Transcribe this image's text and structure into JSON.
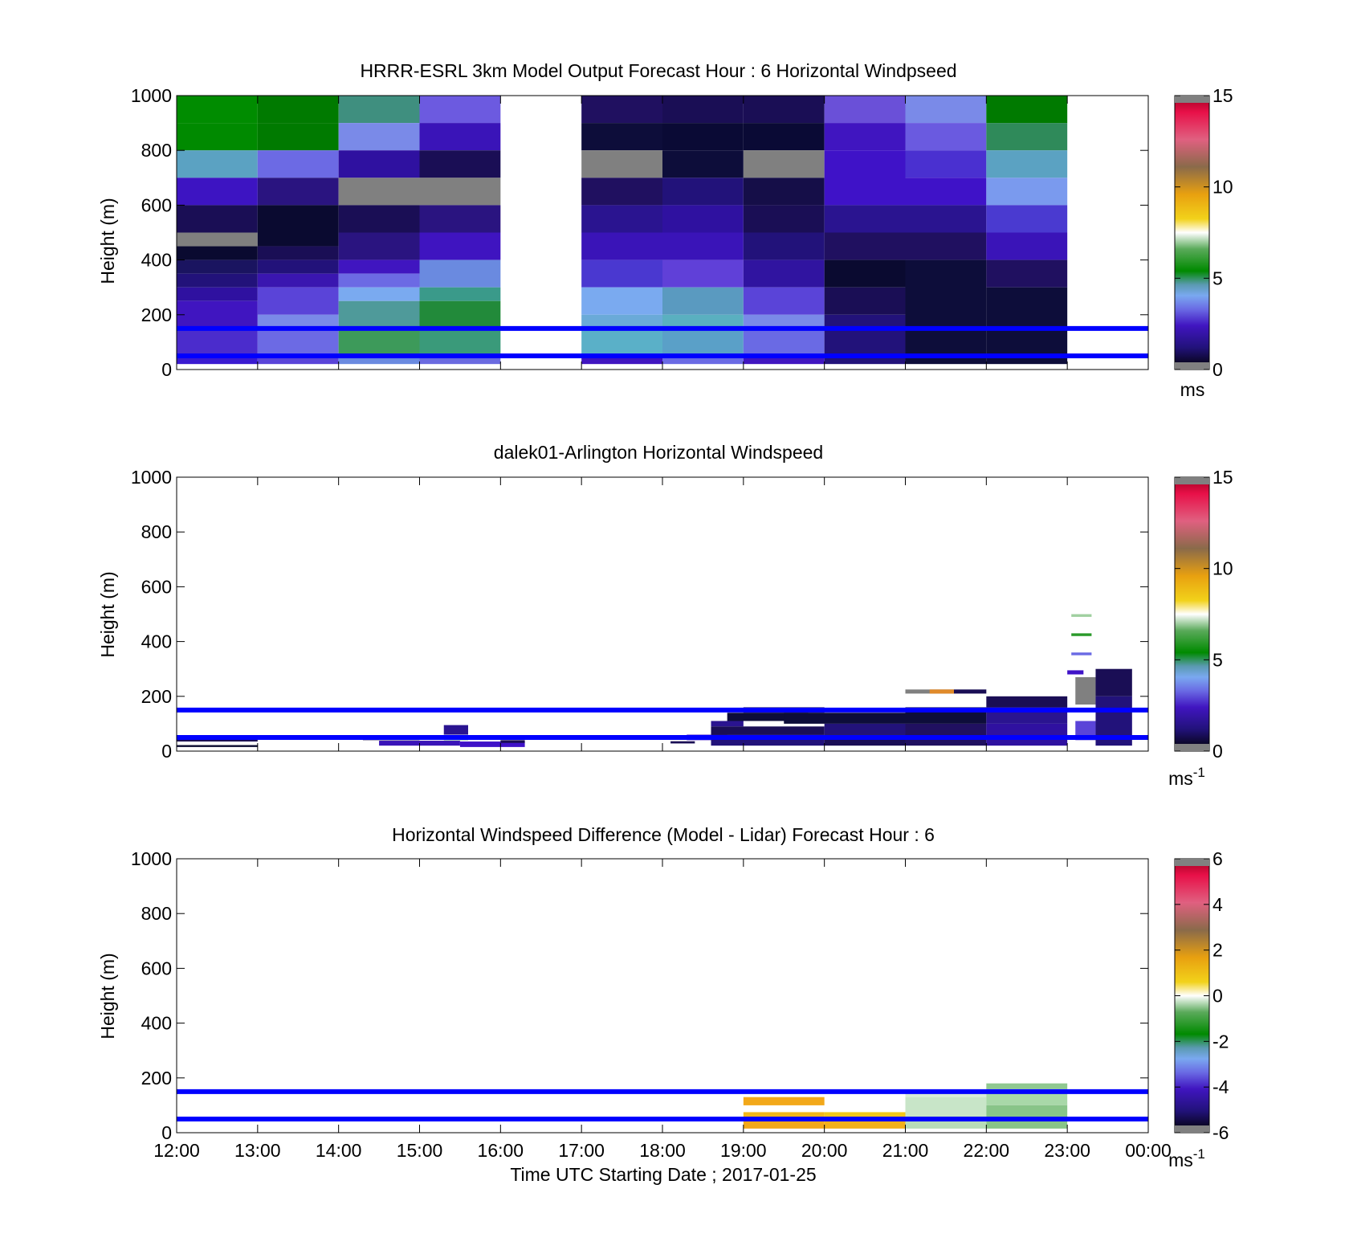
{
  "panels": [
    {
      "title": "HRRR-ESRL 3km Model Output   Forecast Hour : 6 Horizontal Windpseed",
      "ylabel": "Height (m)",
      "colorbar": {
        "unit": "ms",
        "unit_sup": "",
        "ticks": [
          "0",
          "5",
          "10",
          "15"
        ],
        "min": 0,
        "max": 15
      }
    },
    {
      "title": "dalek01-Arlington  Horizontal Windspeed",
      "ylabel": "Height (m)",
      "colorbar": {
        "unit": "ms",
        "unit_sup": "-1",
        "ticks": [
          "0",
          "5",
          "10",
          "15"
        ],
        "min": 0,
        "max": 15
      }
    },
    {
      "title": "Horizontal Windspeed Difference (Model - Lidar) Forecast Hour : 6",
      "ylabel": "Height (m)",
      "colorbar": {
        "unit": "ms",
        "unit_sup": "-1",
        "ticks": [
          "-6",
          "-4",
          "-2",
          "0",
          "2",
          "4",
          "6"
        ],
        "min": -6,
        "max": 6
      }
    }
  ],
  "xaxis": {
    "label": "Time UTC  Starting Date ; 2017-01-25",
    "ticks": [
      "12:00",
      "13:00",
      "14:00",
      "15:00",
      "16:00",
      "17:00",
      "18:00",
      "19:00",
      "20:00",
      "21:00",
      "22:00",
      "23:00",
      "00:00"
    ]
  },
  "yaxis": {
    "ticks": [
      "0",
      "200",
      "400",
      "600",
      "800",
      "1000"
    ],
    "range": [
      0,
      1000
    ]
  },
  "reference_lines": [
    50,
    150
  ],
  "colors": {
    "reference_line": "#0000ff",
    "nodata": "#808080"
  },
  "chart_data": [
    {
      "type": "heatmap",
      "title": "HRRR-ESRL 3km Model Output   Forecast Hour : 6 Horizontal Windpseed",
      "xlabel": "",
      "ylabel": "Height (m)",
      "xlim": [
        12,
        24
      ],
      "ylim": [
        0,
        1000
      ],
      "colorbar_range": [
        0,
        15
      ],
      "cells": [
        [
          12,
          13,
          900,
          1000,
          "#008c00"
        ],
        [
          12,
          13,
          800,
          900,
          "#008a00"
        ],
        [
          12,
          13,
          700,
          800,
          "#5ba2c2"
        ],
        [
          12,
          13,
          600,
          700,
          "#3d14c2"
        ],
        [
          12,
          13,
          500,
          600,
          "#1a0e55"
        ],
        [
          12,
          13,
          450,
          500,
          "#7f7f7f"
        ],
        [
          12,
          13,
          400,
          450,
          "#0a0a30"
        ],
        [
          12,
          13,
          350,
          400,
          "#1a1460"
        ],
        [
          12,
          13,
          300,
          350,
          "#22127a"
        ],
        [
          12,
          13,
          250,
          300,
          "#2f11a0"
        ],
        [
          12,
          13,
          150,
          250,
          "#4015c0"
        ],
        [
          12,
          13,
          50,
          150,
          "#4b2ccc"
        ],
        [
          12,
          13,
          20,
          50,
          "#3a1ad0"
        ],
        [
          13,
          14,
          900,
          1000,
          "#007a00"
        ],
        [
          13,
          14,
          800,
          900,
          "#007a00"
        ],
        [
          13,
          14,
          700,
          800,
          "#6c6ae4"
        ],
        [
          13,
          14,
          600,
          700,
          "#2a1480"
        ],
        [
          13,
          14,
          450,
          600,
          "#0a0a30"
        ],
        [
          13,
          14,
          400,
          450,
          "#1a0e55"
        ],
        [
          13,
          14,
          350,
          400,
          "#22127a"
        ],
        [
          13,
          14,
          300,
          350,
          "#3a16b0"
        ],
        [
          13,
          14,
          200,
          300,
          "#5a44d8"
        ],
        [
          13,
          14,
          150,
          200,
          "#7a8ae8"
        ],
        [
          13,
          14,
          50,
          150,
          "#6c6ae4"
        ],
        [
          13,
          14,
          20,
          50,
          "#5a44d8"
        ],
        [
          14,
          15,
          900,
          1000,
          "#3f8f7f"
        ],
        [
          14,
          15,
          800,
          900,
          "#7a8ae8"
        ],
        [
          14,
          15,
          700,
          800,
          "#2f11a0"
        ],
        [
          14,
          15,
          600,
          700,
          "#808080"
        ],
        [
          14,
          15,
          500,
          600,
          "#1a0e55"
        ],
        [
          14,
          15,
          400,
          500,
          "#2a1480"
        ],
        [
          14,
          15,
          350,
          400,
          "#4015c0"
        ],
        [
          14,
          15,
          300,
          350,
          "#6c6ae4"
        ],
        [
          14,
          15,
          250,
          300,
          "#7aaaf0"
        ],
        [
          14,
          15,
          150,
          250,
          "#4f9a9a"
        ],
        [
          14,
          15,
          50,
          150,
          "#3d9a5a"
        ],
        [
          14,
          15,
          20,
          50,
          "#6a8ae0"
        ],
        [
          15,
          16,
          900,
          1000,
          "#6c5ae0"
        ],
        [
          15,
          16,
          800,
          900,
          "#3a14b8"
        ],
        [
          15,
          16,
          700,
          800,
          "#1a0e55"
        ],
        [
          15,
          16,
          600,
          700,
          "#808080"
        ],
        [
          15,
          16,
          500,
          600,
          "#2a1480"
        ],
        [
          15,
          16,
          400,
          500,
          "#3f14c0"
        ],
        [
          15,
          16,
          300,
          400,
          "#6a8ae0"
        ],
        [
          15,
          16,
          250,
          300,
          "#3a9a8a"
        ],
        [
          15,
          16,
          150,
          250,
          "#228a3a"
        ],
        [
          15,
          16,
          50,
          150,
          "#3a9a7a"
        ],
        [
          15,
          16,
          20,
          50,
          "#6a6ae0"
        ],
        [
          17,
          18,
          900,
          1000,
          "#201060"
        ],
        [
          17,
          18,
          800,
          900,
          "#0d0d3a"
        ],
        [
          17,
          18,
          700,
          800,
          "#808080"
        ],
        [
          17,
          18,
          600,
          700,
          "#201060"
        ],
        [
          17,
          18,
          500,
          600,
          "#2a1490"
        ],
        [
          17,
          18,
          400,
          500,
          "#3a14b8"
        ],
        [
          17,
          18,
          300,
          400,
          "#4a38d0"
        ],
        [
          17,
          18,
          200,
          300,
          "#7aaaf0"
        ],
        [
          17,
          18,
          150,
          200,
          "#6aaad8"
        ],
        [
          17,
          18,
          50,
          150,
          "#5ab0c8"
        ],
        [
          17,
          18,
          20,
          50,
          "#4015c0"
        ],
        [
          18,
          19,
          900,
          1000,
          "#1a0e55"
        ],
        [
          18,
          19,
          800,
          900,
          "#0a0a35"
        ],
        [
          18,
          19,
          700,
          800,
          "#0d0d3a"
        ],
        [
          18,
          19,
          600,
          700,
          "#22127a"
        ],
        [
          18,
          19,
          500,
          600,
          "#2f11a0"
        ],
        [
          18,
          19,
          400,
          500,
          "#3a14b8"
        ],
        [
          18,
          19,
          300,
          400,
          "#6040d8"
        ],
        [
          18,
          19,
          200,
          300,
          "#5a9ac0"
        ],
        [
          18,
          19,
          150,
          200,
          "#5ab0c0"
        ],
        [
          18,
          19,
          50,
          150,
          "#5aa0c8"
        ],
        [
          18,
          19,
          20,
          50,
          "#6a6ae4"
        ],
        [
          19,
          20,
          900,
          1000,
          "#1a0e55"
        ],
        [
          19,
          20,
          800,
          900,
          "#0a0a35"
        ],
        [
          19,
          20,
          700,
          800,
          "#808080"
        ],
        [
          19,
          20,
          600,
          700,
          "#150e48"
        ],
        [
          19,
          20,
          500,
          600,
          "#1a0e55"
        ],
        [
          19,
          20,
          400,
          500,
          "#22127a"
        ],
        [
          19,
          20,
          300,
          400,
          "#3014a0"
        ],
        [
          19,
          20,
          200,
          300,
          "#5a44d8"
        ],
        [
          19,
          20,
          150,
          200,
          "#7a8ae8"
        ],
        [
          19,
          20,
          50,
          150,
          "#6a6ae4"
        ],
        [
          19,
          20,
          20,
          50,
          "#4015c0"
        ],
        [
          20,
          21,
          900,
          1000,
          "#6a50d8"
        ],
        [
          20,
          21,
          800,
          900,
          "#4015c0"
        ],
        [
          20,
          21,
          600,
          800,
          "#3f12c8"
        ],
        [
          20,
          21,
          500,
          600,
          "#2a1490"
        ],
        [
          20,
          21,
          400,
          500,
          "#201060"
        ],
        [
          20,
          21,
          300,
          400,
          "#0a0a30"
        ],
        [
          20,
          21,
          200,
          300,
          "#1a0e55"
        ],
        [
          20,
          21,
          20,
          200,
          "#22127a"
        ],
        [
          21,
          22,
          900,
          1000,
          "#7a8ae8"
        ],
        [
          21,
          22,
          800,
          900,
          "#6a5ae0"
        ],
        [
          21,
          22,
          700,
          800,
          "#4a30d0"
        ],
        [
          21,
          22,
          600,
          700,
          "#3f12c8"
        ],
        [
          21,
          22,
          500,
          600,
          "#2a1490"
        ],
        [
          21,
          22,
          400,
          500,
          "#201060"
        ],
        [
          21,
          22,
          20,
          400,
          "#0d0d3a"
        ],
        [
          22,
          23,
          900,
          1000,
          "#007a00"
        ],
        [
          22,
          23,
          800,
          900,
          "#2f8a5a"
        ],
        [
          22,
          23,
          700,
          800,
          "#5ba2c2"
        ],
        [
          22,
          23,
          600,
          700,
          "#7a9aee"
        ],
        [
          22,
          23,
          500,
          600,
          "#4a3ad0"
        ],
        [
          22,
          23,
          400,
          500,
          "#3a14b8"
        ],
        [
          22,
          23,
          300,
          400,
          "#201060"
        ],
        [
          22,
          23,
          20,
          300,
          "#0d0d3a"
        ]
      ]
    },
    {
      "type": "heatmap",
      "title": "dalek01-Arlington  Horizontal Windspeed",
      "xlabel": "",
      "ylabel": "Height (m)",
      "xlim": [
        12,
        24
      ],
      "ylim": [
        0,
        1000
      ],
      "colorbar_range": [
        0,
        15
      ],
      "cells": [
        [
          12,
          13,
          35,
          45,
          "#1a0e55"
        ],
        [
          12,
          13,
          15,
          22,
          "#0a0a30"
        ],
        [
          14.3,
          15,
          40,
          48,
          "#1a0e55"
        ],
        [
          14.5,
          15.5,
          20,
          38,
          "#3a14b8"
        ],
        [
          15.3,
          15.6,
          60,
          95,
          "#2a1490"
        ],
        [
          15.3,
          15.6,
          40,
          55,
          "#3a9a5a"
        ],
        [
          15.5,
          16.3,
          15,
          35,
          "#3f12c8"
        ],
        [
          16,
          16.3,
          30,
          40,
          "#1a0e55"
        ],
        [
          18.1,
          18.4,
          28,
          36,
          "#1a0e55"
        ],
        [
          18.3,
          18.8,
          40,
          60,
          "#3f12c8"
        ],
        [
          18.6,
          19,
          90,
          110,
          "#2a1490"
        ],
        [
          18.6,
          20,
          60,
          90,
          "#1a0e55"
        ],
        [
          18.6,
          20,
          20,
          60,
          "#22127a"
        ],
        [
          18.8,
          19.8,
          110,
          140,
          "#0d0d3a"
        ],
        [
          19,
          20,
          140,
          160,
          "#1a0e55"
        ],
        [
          19.5,
          21,
          100,
          140,
          "#0d0d3a"
        ],
        [
          20,
          21,
          60,
          100,
          "#22127a"
        ],
        [
          20,
          21,
          20,
          60,
          "#1a0e55"
        ],
        [
          21,
          21.6,
          210,
          225,
          "#808080"
        ],
        [
          21.3,
          21.6,
          210,
          225,
          "#e08a2a"
        ],
        [
          21.6,
          22,
          210,
          225,
          "#1a0e55"
        ],
        [
          21,
          22,
          100,
          160,
          "#0d0d3a"
        ],
        [
          21,
          22,
          20,
          100,
          "#201060"
        ],
        [
          22,
          23,
          160,
          200,
          "#1a0e55"
        ],
        [
          22,
          23,
          100,
          160,
          "#2a1490"
        ],
        [
          22,
          23,
          20,
          100,
          "#2f11a0"
        ],
        [
          23,
          23.2,
          280,
          295,
          "#3f12c8"
        ],
        [
          23.1,
          23.35,
          170,
          270,
          "#808080"
        ],
        [
          23.1,
          23.35,
          40,
          110,
          "#5a44d8"
        ],
        [
          23.35,
          23.8,
          200,
          300,
          "#1a0e55"
        ],
        [
          23.35,
          23.8,
          20,
          200,
          "#22127a"
        ],
        [
          23.05,
          23.3,
          490,
          500,
          "#a0d0a0"
        ],
        [
          23.05,
          23.3,
          420,
          430,
          "#2a9a2a"
        ],
        [
          23.05,
          23.3,
          350,
          360,
          "#6a6ae4"
        ]
      ]
    },
    {
      "type": "heatmap",
      "title": "Horizontal Windspeed Difference (Model - Lidar) Forecast Hour : 6",
      "xlabel": "Time UTC  Starting Date ; 2017-01-25",
      "ylabel": "Height (m)",
      "xlim": [
        12,
        24
      ],
      "ylim": [
        0,
        1000
      ],
      "colorbar_range": [
        -6,
        6
      ],
      "cells": [
        [
          19,
          20,
          100,
          130,
          "#f2a81a"
        ],
        [
          19,
          20,
          60,
          75,
          "#f2b81a"
        ],
        [
          19,
          20,
          15,
          60,
          "#f2a81a"
        ],
        [
          20,
          21,
          60,
          75,
          "#f2c81a"
        ],
        [
          20,
          21,
          15,
          60,
          "#f2b01a"
        ],
        [
          21,
          22,
          130,
          150,
          "#d8ebd8"
        ],
        [
          21,
          22,
          60,
          130,
          "#c8e5c8"
        ],
        [
          21,
          22,
          15,
          60,
          "#b8dcb8"
        ],
        [
          22,
          23,
          160,
          180,
          "#90c890"
        ],
        [
          22,
          23,
          100,
          160,
          "#a8d8a8"
        ],
        [
          22,
          23,
          15,
          100,
          "#88c488"
        ]
      ]
    }
  ]
}
